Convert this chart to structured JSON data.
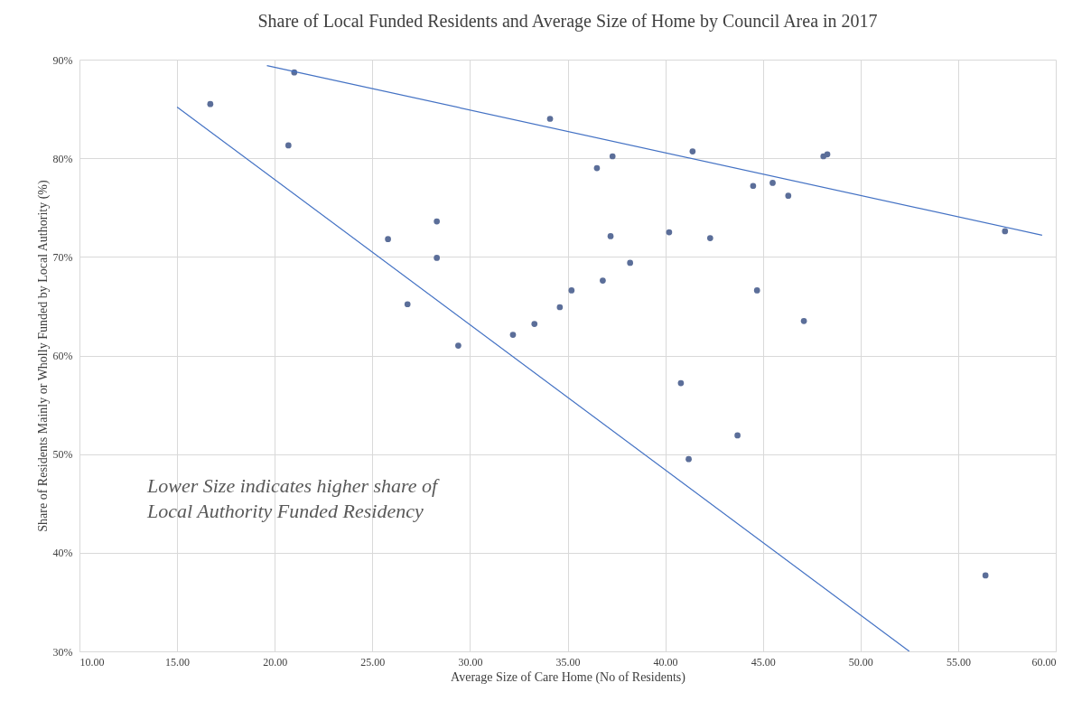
{
  "chart_data": {
    "type": "scatter",
    "title": "Share of Local Funded Residents and Average Size of Home by Council Area in 2017",
    "xlabel": "Average Size of Care Home (No of Residents)",
    "ylabel": "Share of Residents Mainly or Wholly Funded by Local Authority (%)",
    "xlim": [
      10,
      60
    ],
    "xticks": [
      {
        "value": 10,
        "label": "10.00"
      },
      {
        "value": 15,
        "label": "15.00"
      },
      {
        "value": 20,
        "label": "20.00"
      },
      {
        "value": 25,
        "label": "25.00"
      },
      {
        "value": 30,
        "label": "30.00"
      },
      {
        "value": 35,
        "label": "35.00"
      },
      {
        "value": 40,
        "label": "40.00"
      },
      {
        "value": 45,
        "label": "45.00"
      },
      {
        "value": 50,
        "label": "50.00"
      },
      {
        "value": 55,
        "label": "55.00"
      },
      {
        "value": 60,
        "label": "60.00"
      }
    ],
    "ylim": [
      30,
      90
    ],
    "yticks": [
      {
        "value": 30,
        "label": "30%"
      },
      {
        "value": 40,
        "label": "40%"
      },
      {
        "value": 50,
        "label": "50%"
      },
      {
        "value": 60,
        "label": "60%"
      },
      {
        "value": 70,
        "label": "70%"
      },
      {
        "value": 80,
        "label": "80%"
      },
      {
        "value": 90,
        "label": "90%"
      }
    ],
    "grid": true,
    "series": [
      {
        "marker": "circle",
        "color": "#5b6e99",
        "x": [
          16.7,
          21.0,
          20.7,
          25.8,
          26.8,
          28.3,
          28.3,
          29.4,
          32.2,
          33.3,
          34.1,
          34.6,
          35.2,
          36.5,
          36.8,
          37.2,
          37.3,
          38.2,
          40.2,
          40.8,
          41.4,
          41.2,
          42.3,
          43.7,
          44.5,
          44.7,
          45.5,
          46.3,
          47.1,
          48.1,
          48.3,
          57.4,
          56.4
        ],
        "values": [
          85.5,
          88.7,
          81.3,
          71.8,
          65.2,
          73.6,
          69.9,
          61.0,
          62.1,
          63.2,
          84.0,
          64.9,
          66.6,
          79.0,
          67.6,
          72.1,
          80.2,
          69.4,
          72.5,
          57.2,
          80.7,
          49.5,
          71.9,
          51.9,
          77.2,
          66.6,
          77.5,
          76.2,
          63.5,
          80.2,
          80.4,
          72.6,
          37.7
        ]
      },
      {
        "type": "line",
        "marker": "none",
        "color": "#4472c4",
        "x": [
          19.6,
          59.3
        ],
        "values": [
          89.4,
          72.2
        ]
      },
      {
        "type": "line",
        "marker": "none",
        "color": "#4472c4",
        "x": [
          15.0,
          52.5
        ],
        "values": [
          85.2,
          30.0
        ]
      }
    ],
    "annotations": [
      "Lower Size indicates higher share of Local Authority Funded Residency"
    ]
  }
}
